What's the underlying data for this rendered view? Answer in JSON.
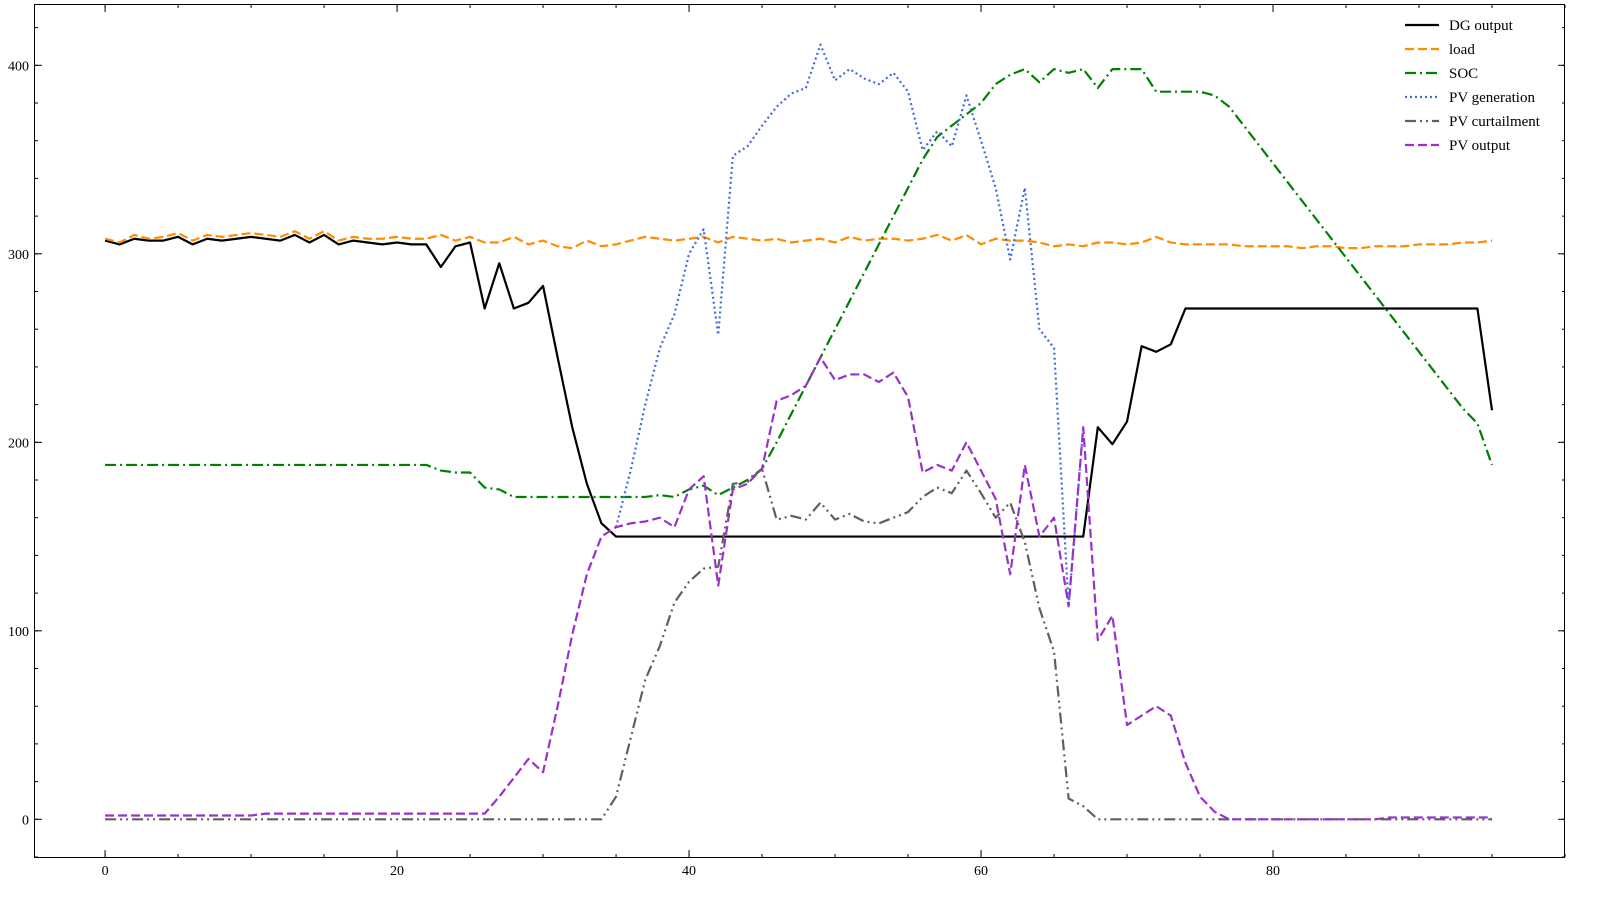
{
  "chart_data": {
    "type": "line",
    "title": "",
    "xlabel": "",
    "ylabel": "",
    "xlim": [
      -4.8,
      100
    ],
    "ylim": [
      -20,
      432
    ],
    "xticks": [
      0,
      20,
      40,
      60,
      80
    ],
    "yticks": [
      0,
      100,
      200,
      300,
      400
    ],
    "legend_position": "top-right",
    "grid": false,
    "series": [
      {
        "name": "DG output",
        "color": "#000000",
        "style": "solid",
        "values": [
          307,
          305,
          308,
          307,
          307,
          309,
          305,
          308,
          307,
          308,
          309,
          308,
          307,
          310,
          306,
          310,
          305,
          307,
          306,
          305,
          306,
          305,
          305,
          293,
          304,
          306,
          271,
          295,
          271,
          274,
          283,
          245,
          208,
          178,
          157,
          150,
          150,
          150,
          150,
          150,
          150,
          150,
          150,
          150,
          150,
          150,
          150,
          150,
          150,
          150,
          150,
          150,
          150,
          150,
          150,
          150,
          150,
          150,
          150,
          150,
          150,
          150,
          150,
          150,
          150,
          150,
          150,
          150,
          208,
          199,
          211,
          251,
          248,
          252,
          271,
          271,
          271,
          271,
          271,
          271,
          271,
          271,
          271,
          271,
          271,
          271,
          271,
          271,
          271,
          271,
          271,
          271,
          271,
          271,
          271,
          217
        ]
      },
      {
        "name": "load",
        "color": "#ff8c00",
        "style": "dashed",
        "values": [
          308,
          306,
          310,
          308,
          309,
          311,
          307,
          310,
          309,
          310,
          311,
          310,
          309,
          312,
          308,
          312,
          307,
          309,
          308,
          308,
          309,
          308,
          308,
          310,
          307,
          309,
          306,
          306,
          309,
          305,
          307,
          304,
          303,
          307,
          304,
          305,
          307,
          309,
          308,
          307,
          308,
          309,
          306,
          309,
          308,
          307,
          308,
          306,
          307,
          308,
          306,
          309,
          307,
          308,
          308,
          307,
          308,
          310,
          307,
          310,
          305,
          308,
          307,
          307,
          306,
          304,
          305,
          304,
          306,
          306,
          305,
          306,
          309,
          306,
          305,
          305,
          305,
          305,
          304,
          304,
          304,
          304,
          303,
          304,
          304,
          303,
          303,
          304,
          304,
          304,
          305,
          305,
          305,
          306,
          306,
          307
        ]
      },
      {
        "name": "SOC",
        "color": "#008000",
        "style": "dashdot",
        "values": [
          188,
          188,
          188,
          188,
          188,
          188,
          188,
          188,
          188,
          188,
          188,
          188,
          188,
          188,
          188,
          188,
          188,
          188,
          188,
          188,
          188,
          188,
          188,
          185,
          184,
          184,
          176,
          175,
          171,
          171,
          171,
          171,
          171,
          171,
          171,
          171,
          171,
          171,
          172,
          171,
          175,
          177,
          172,
          176,
          180,
          186,
          200,
          215,
          230,
          245,
          260,
          275,
          290,
          305,
          320,
          335,
          350,
          362,
          368,
          374,
          380,
          390,
          395,
          398,
          391,
          398,
          396,
          398,
          388,
          398,
          398,
          398,
          386,
          386,
          386,
          386,
          384,
          378,
          368,
          358,
          348,
          338,
          328,
          318,
          308,
          298,
          288,
          278,
          268,
          258,
          248,
          238,
          228,
          218,
          210,
          188
        ]
      },
      {
        "name": "PV generation",
        "color": "#4169e1",
        "style": "dotted",
        "values": [
          null,
          null,
          null,
          null,
          null,
          null,
          null,
          null,
          null,
          null,
          null,
          null,
          null,
          null,
          null,
          null,
          null,
          null,
          null,
          null,
          null,
          null,
          null,
          null,
          null,
          null,
          null,
          null,
          null,
          null,
          null,
          null,
          null,
          null,
          null,
          155,
          185,
          220,
          250,
          268,
          300,
          313,
          257,
          352,
          357,
          368,
          378,
          385,
          388,
          411,
          392,
          398,
          393,
          390,
          396,
          386,
          355,
          365,
          357,
          384,
          360,
          335,
          297,
          335,
          260,
          250,
          113,
          208,
          null,
          null,
          null,
          null,
          null,
          null,
          null,
          null,
          null,
          null,
          null,
          null,
          null,
          null,
          null,
          null,
          null,
          null,
          null,
          null,
          null,
          null,
          null,
          null,
          null,
          null,
          null,
          null
        ]
      },
      {
        "name": "PV curtailment",
        "color": "#5f5f5f",
        "style": "dashdotdot",
        "values": [
          0,
          0,
          0,
          0,
          0,
          0,
          0,
          0,
          0,
          0,
          0,
          0,
          0,
          0,
          0,
          0,
          0,
          0,
          0,
          0,
          0,
          0,
          0,
          0,
          0,
          0,
          0,
          0,
          0,
          0,
          0,
          0,
          0,
          0,
          0,
          12,
          43,
          74,
          92,
          115,
          126,
          133,
          134,
          178,
          179,
          186,
          159,
          161,
          159,
          168,
          159,
          162,
          158,
          157,
          160,
          163,
          171,
          176,
          173,
          185,
          173,
          160,
          168,
          147,
          112,
          89,
          11,
          7,
          0,
          0,
          0,
          0,
          0,
          0,
          0,
          0,
          0,
          0,
          0,
          0,
          0,
          0,
          0,
          0,
          0,
          0,
          0,
          0,
          0,
          0,
          0,
          0,
          0,
          0,
          0,
          0
        ]
      },
      {
        "name": "PV output",
        "color": "#9932cc",
        "style": "dashed",
        "values": [
          2,
          2,
          2,
          2,
          2,
          2,
          2,
          2,
          2,
          2,
          2,
          3,
          3,
          3,
          3,
          3,
          3,
          3,
          3,
          3,
          3,
          3,
          3,
          3,
          3,
          3,
          3,
          12,
          22,
          32,
          25,
          60,
          98,
          130,
          150,
          155,
          157,
          158,
          160,
          155,
          175,
          182,
          124,
          175,
          178,
          186,
          222,
          225,
          230,
          245,
          233,
          236,
          236,
          232,
          237,
          224,
          184,
          188,
          185,
          200,
          185,
          170,
          130,
          188,
          150,
          160,
          113,
          208,
          95,
          108,
          50,
          55,
          60,
          55,
          30,
          12,
          4,
          0,
          0,
          0,
          0,
          0,
          0,
          0,
          0,
          0,
          0,
          0,
          1,
          1,
          1,
          1,
          1,
          1,
          1,
          1
        ]
      }
    ]
  }
}
